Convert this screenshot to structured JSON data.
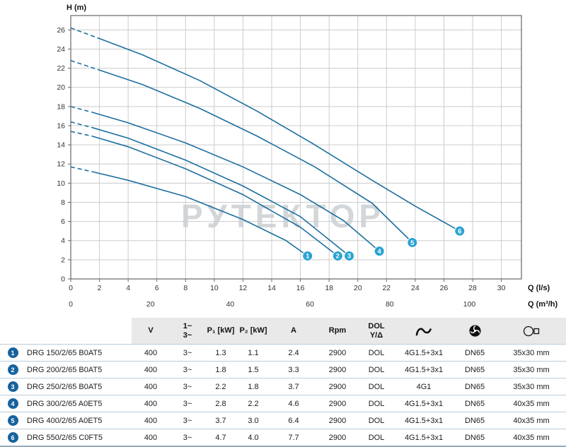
{
  "chart": {
    "watermark": "РУТЕКТОР",
    "axis": {
      "y_title": "H (m)",
      "x1_title": "Q (l/s)",
      "x2_title": "Q (m³/h)"
    },
    "colors": {
      "curve": "#1d6f9f",
      "grid": "#cccccc",
      "border": "#666666",
      "marker_fill": "#2aa3d2",
      "marker_text": "#ffffff",
      "axis_text": "#333333",
      "watermark": "#c9ced2"
    }
  },
  "chart_data": {
    "type": "line",
    "title": "",
    "ylabel": "H (m)",
    "xlabel": "Q (l/s)",
    "x2label": "Q (m³/h)",
    "xlim": [
      0,
      31.4
    ],
    "ylim": [
      0,
      27.5
    ],
    "x_ticks": [
      0,
      2,
      4,
      6,
      8,
      10,
      12,
      14,
      16,
      18,
      20,
      22,
      24,
      26,
      28,
      30
    ],
    "x2_ticks": [
      0,
      20,
      40,
      60,
      80,
      100
    ],
    "x2_conversion": 3.6,
    "y_ticks": [
      0,
      2,
      4,
      6,
      8,
      10,
      12,
      14,
      16,
      18,
      20,
      22,
      24,
      26
    ],
    "grid": true,
    "legend": "markers-at-curve-end",
    "series": [
      {
        "name": "1",
        "dash_split": 1,
        "points": [
          [
            0,
            11.7
          ],
          [
            1.5,
            11.2
          ],
          [
            4,
            10.3
          ],
          [
            8,
            8.6
          ],
          [
            12,
            6.2
          ],
          [
            15,
            4.0
          ],
          [
            16.5,
            2.4
          ]
        ]
      },
      {
        "name": "2",
        "dash_split": 1,
        "points": [
          [
            0,
            15.4
          ],
          [
            1.5,
            14.9
          ],
          [
            4,
            13.8
          ],
          [
            8,
            11.5
          ],
          [
            12,
            8.8
          ],
          [
            16,
            5.4
          ],
          [
            18.6,
            2.4
          ]
        ]
      },
      {
        "name": "3",
        "dash_split": 1,
        "points": [
          [
            0,
            16.4
          ],
          [
            1.5,
            15.8
          ],
          [
            4,
            14.7
          ],
          [
            8,
            12.4
          ],
          [
            12,
            9.7
          ],
          [
            16,
            6.5
          ],
          [
            19.4,
            2.4
          ]
        ]
      },
      {
        "name": "4",
        "dash_split": 1,
        "points": [
          [
            0,
            18.0
          ],
          [
            1.5,
            17.4
          ],
          [
            4,
            16.3
          ],
          [
            8,
            14.2
          ],
          [
            12,
            11.7
          ],
          [
            16,
            8.8
          ],
          [
            19,
            6.1
          ],
          [
            21.5,
            2.9
          ]
        ]
      },
      {
        "name": "5",
        "dash_split": 1,
        "points": [
          [
            0,
            22.8
          ],
          [
            2,
            21.8
          ],
          [
            5,
            20.3
          ],
          [
            9,
            17.8
          ],
          [
            13,
            14.9
          ],
          [
            17,
            11.7
          ],
          [
            21,
            7.9
          ],
          [
            23.8,
            3.8
          ]
        ]
      },
      {
        "name": "6",
        "dash_split": 1,
        "points": [
          [
            0,
            26.2
          ],
          [
            2,
            25.1
          ],
          [
            5,
            23.4
          ],
          [
            9,
            20.7
          ],
          [
            13,
            17.5
          ],
          [
            17,
            14.0
          ],
          [
            21,
            10.3
          ],
          [
            24,
            7.6
          ],
          [
            27.1,
            5.0
          ]
        ]
      }
    ]
  },
  "table": {
    "badge_color": "#16629e",
    "headers": {
      "v": "V",
      "phase_line1": "1~",
      "phase_line2": "3~",
      "p1": "P₁ [kW]",
      "p2": "P₂ [kW]",
      "amps": "A",
      "rpm": "Rpm",
      "dol_line1": "DOL",
      "dol_line2": "Y/Δ"
    },
    "rows": [
      {
        "num": "1",
        "model": "DRG 150/2/65 B0AT5",
        "v": "400",
        "phase": "3~",
        "p1": "1.3",
        "p2": "1.1",
        "a": "2.4",
        "rpm": "2900",
        "start": "DOL",
        "cable": "4G1.5+3x1",
        "dn": "DN65",
        "outlet": "35x30 mm"
      },
      {
        "num": "2",
        "model": "DRG 200/2/65 B0AT5",
        "v": "400",
        "phase": "3~",
        "p1": "1.8",
        "p2": "1.5",
        "a": "3.3",
        "rpm": "2900",
        "start": "DOL",
        "cable": "4G1.5+3x1",
        "dn": "DN65",
        "outlet": "35x30 mm"
      },
      {
        "num": "3",
        "model": "DRG 250/2/65 B0AT5",
        "v": "400",
        "phase": "3~",
        "p1": "2.2",
        "p2": "1.8",
        "a": "3.7",
        "rpm": "2900",
        "start": "DOL",
        "cable": "4G1",
        "dn": "DN65",
        "outlet": "35x30 mm"
      },
      {
        "num": "4",
        "model": "DRG 300/2/65 A0ET5",
        "v": "400",
        "phase": "3~",
        "p1": "2.8",
        "p2": "2.2",
        "a": "4.6",
        "rpm": "2900",
        "start": "DOL",
        "cable": "4G1.5+3x1",
        "dn": "DN65",
        "outlet": "40x35 mm"
      },
      {
        "num": "5",
        "model": "DRG 400/2/65 A0ET5",
        "v": "400",
        "phase": "3~",
        "p1": "3.7",
        "p2": "3.0",
        "a": "6.4",
        "rpm": "2900",
        "start": "DOL",
        "cable": "4G1.5+3x1",
        "dn": "DN65",
        "outlet": "40x35 mm"
      },
      {
        "num": "6",
        "model": "DRG 550/2/65 C0FT5",
        "v": "400",
        "phase": "3~",
        "p1": "4.7",
        "p2": "4.0",
        "a": "7.7",
        "rpm": "2900",
        "start": "DOL",
        "cable": "4G1.5+3x1",
        "dn": "DN65",
        "outlet": "40x35 mm"
      }
    ]
  }
}
